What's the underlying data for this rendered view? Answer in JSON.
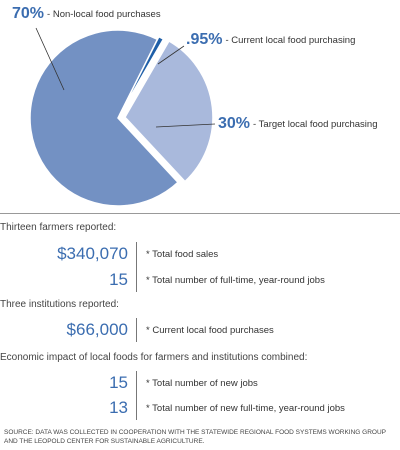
{
  "chart_data": {
    "type": "pie",
    "categories": [
      "- Non-local food purchases",
      "- Current local food purchasing",
      "- Target local food purchasing"
    ],
    "values": [
      70,
      0.95,
      30
    ],
    "value_labels": [
      "70%",
      ".95%",
      "30%"
    ],
    "colors": [
      "#7391c3",
      "#1f5fa8",
      "#a9b9dc"
    ]
  },
  "sections": [
    {
      "heading": "Thirteen farmers reported:",
      "stats": [
        {
          "value": "$340,070",
          "label": "* Total food sales"
        },
        {
          "value": "15",
          "label": "* Total number of full-time, year-round jobs"
        }
      ]
    },
    {
      "heading": "Three institutions reported:",
      "stats": [
        {
          "value": "$66,000",
          "label": "* Current local food purchases"
        }
      ]
    },
    {
      "heading": "Economic impact of local foods for farmers and institutions combined:",
      "stats": [
        {
          "value": "15",
          "label": "* Total number of new jobs"
        },
        {
          "value": "13",
          "label": "* Total number of new full-time, year-round jobs"
        }
      ]
    }
  ],
  "source": "SOURCE: DATA WAS COLLECTED IN COOPERATION WITH THE STATEWIDE REGIONAL FOOD SYSTEMS WORKING GROUP AND THE LEOPOLD CENTER FOR SUSTAINABLE AGRICULTURE."
}
